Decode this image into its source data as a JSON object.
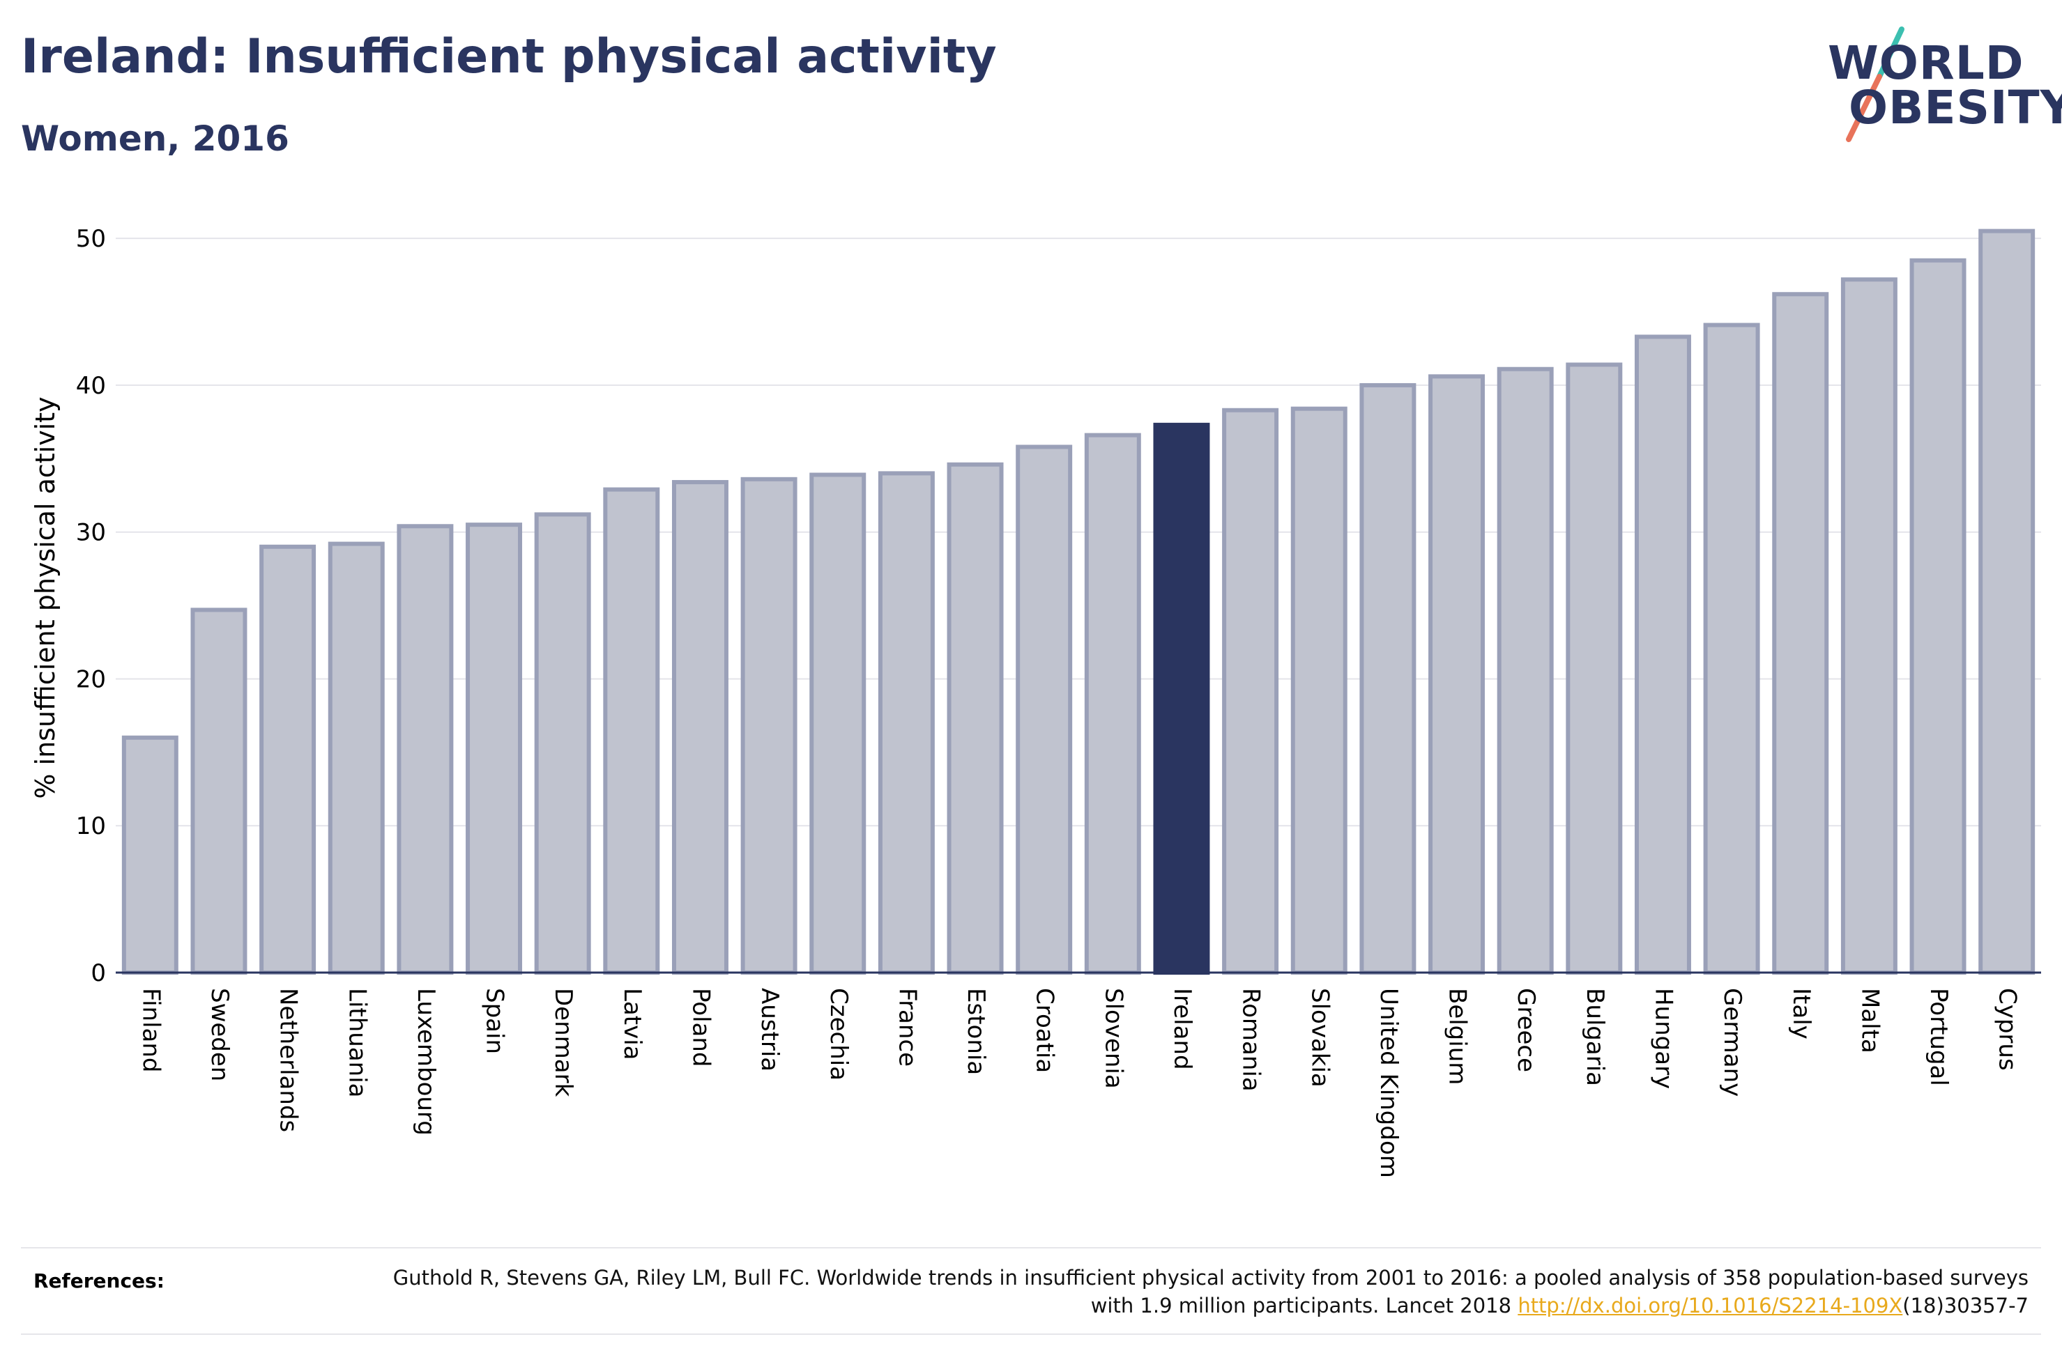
{
  "header": {
    "title": "Ireland: Insufficient physical activity",
    "subtitle": "Women, 2016"
  },
  "logo": {
    "line1": "WORLD",
    "line2": "OBESITY",
    "accent_colors": [
      "#3cbfb0",
      "#e8735a"
    ]
  },
  "colors": {
    "bar": "#c0c3cf",
    "bar_border": "#9aa0b8",
    "highlight": "#2a3560",
    "grid": "#e4e4ea"
  },
  "chart_data": {
    "type": "bar",
    "title": "Ireland: Insufficient physical activity",
    "subtitle": "Women, 2016",
    "xlabel": "",
    "ylabel": "% insufficient physical activity",
    "ylim": [
      0,
      52
    ],
    "yticks": [
      0,
      10,
      20,
      30,
      40,
      50
    ],
    "grid": true,
    "highlight": "Ireland",
    "categories": [
      "Finland",
      "Sweden",
      "Netherlands",
      "Lithuania",
      "Luxembourg",
      "Spain",
      "Denmark",
      "Latvia",
      "Poland",
      "Austria",
      "Czechia",
      "France",
      "Estonia",
      "Croatia",
      "Slovenia",
      "Ireland",
      "Romania",
      "Slovakia",
      "United Kingdom",
      "Belgium",
      "Greece",
      "Bulgaria",
      "Hungary",
      "Germany",
      "Italy",
      "Malta",
      "Portugal",
      "Cyprus"
    ],
    "values": [
      16.0,
      24.7,
      29.0,
      29.2,
      30.4,
      30.5,
      31.2,
      32.9,
      33.4,
      33.6,
      33.9,
      34.0,
      34.6,
      35.8,
      36.6,
      37.3,
      38.3,
      38.4,
      40.0,
      40.6,
      41.1,
      41.4,
      43.3,
      44.1,
      46.2,
      47.2,
      48.5,
      50.5
    ]
  },
  "references": {
    "label": "References:",
    "text_before": "Guthold R, Stevens GA, Riley LM, Bull FC. Worldwide trends in insufficient physical activity from 2001 to 2016: a pooled analysis of 358 population-based surveys with 1.9 million participants. Lancet 2018 ",
    "link": "http://dx.doi.org/10.1016/S2214-109X",
    "text_after": "(18)30357-7"
  }
}
